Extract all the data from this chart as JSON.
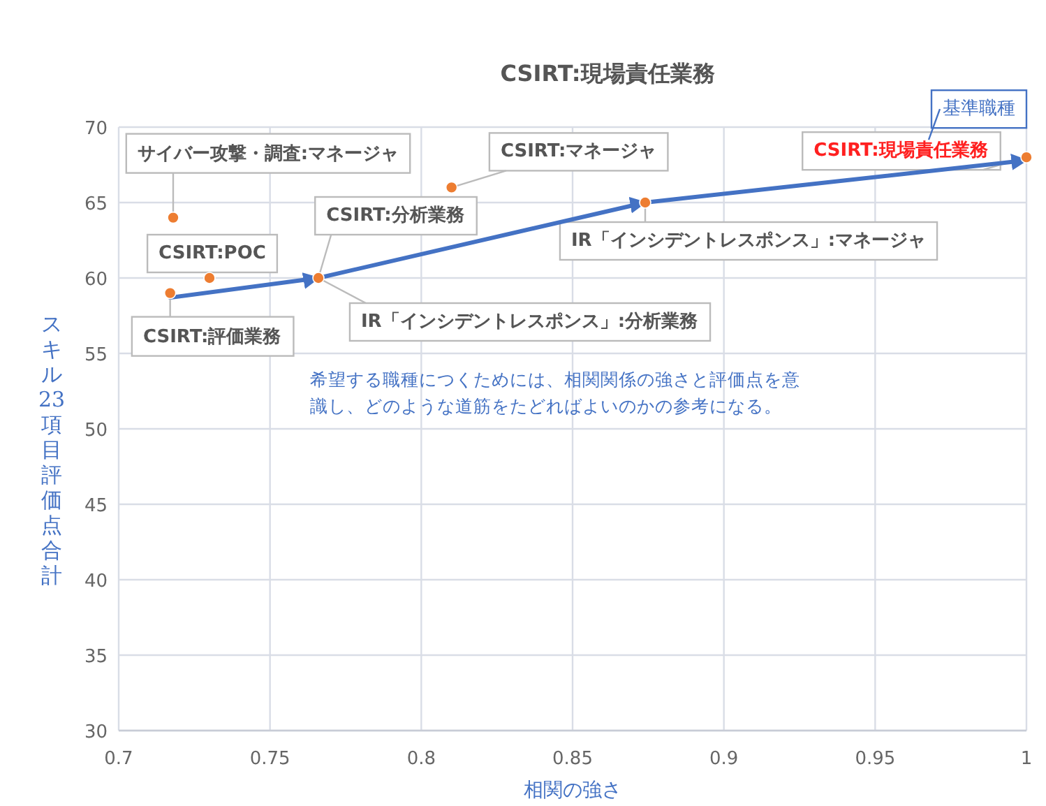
{
  "chart_data": {
    "type": "scatter",
    "title": "CSIRT:現場責任業務",
    "xlabel": "相関の強さ",
    "ylabel": "スキル23項目評価点合計",
    "series": [
      {
        "type": "line",
        "color": "#4472c4",
        "x": [
          0.717,
          0.766,
          0.874,
          1.0
        ],
        "values": [
          58.7,
          60,
          65,
          67.8
        ],
        "marker": "none"
      },
      {
        "type": "scatter",
        "color": "#ed7d31",
        "x": [
          0.718,
          0.73,
          0.717,
          0.766,
          0.81,
          0.874,
          1.0
        ],
        "values": [
          64,
          60,
          59,
          60,
          66,
          65,
          68
        ]
      }
    ],
    "annotations": [
      {
        "text": "サイバー攻撃・調査:マネージャ",
        "x": 0.718,
        "y": 64
      },
      {
        "text": "CSIRT:POC",
        "x": 0.73,
        "y": 60
      },
      {
        "text": "CSIRT:評価業務",
        "x": 0.717,
        "y": 59
      },
      {
        "text": "CSIRT:分析業務",
        "x": 0.766,
        "y": 60
      },
      {
        "text": "IR「インシデントレスポンス」:分析業務",
        "x": 0.766,
        "y": 60
      },
      {
        "text": "CSIRT:マネージャ",
        "x": 0.81,
        "y": 66
      },
      {
        "text": "IR「インシデントレスポンス」:マネージャ",
        "x": 0.874,
        "y": 65
      },
      {
        "text": "CSIRT:現場責任業務",
        "x": 1.0,
        "y": 68
      },
      {
        "text": "基準職種",
        "x": 1.0,
        "y": 68
      },
      "希望する職種につくためには、相関関係の強さと評価点を意識し、どのような道筋をたどればよいのかの参考になる。"
    ],
    "xlim": [
      0.7,
      1
    ],
    "xticks": [
      0.7,
      0.75,
      0.8,
      0.85,
      0.9,
      0.95,
      1
    ],
    "ylim": [
      30,
      70
    ],
    "yticks": [
      30,
      35,
      40,
      45,
      50,
      55,
      60,
      65,
      70
    ],
    "grid": true,
    "marker": "circle"
  }
}
